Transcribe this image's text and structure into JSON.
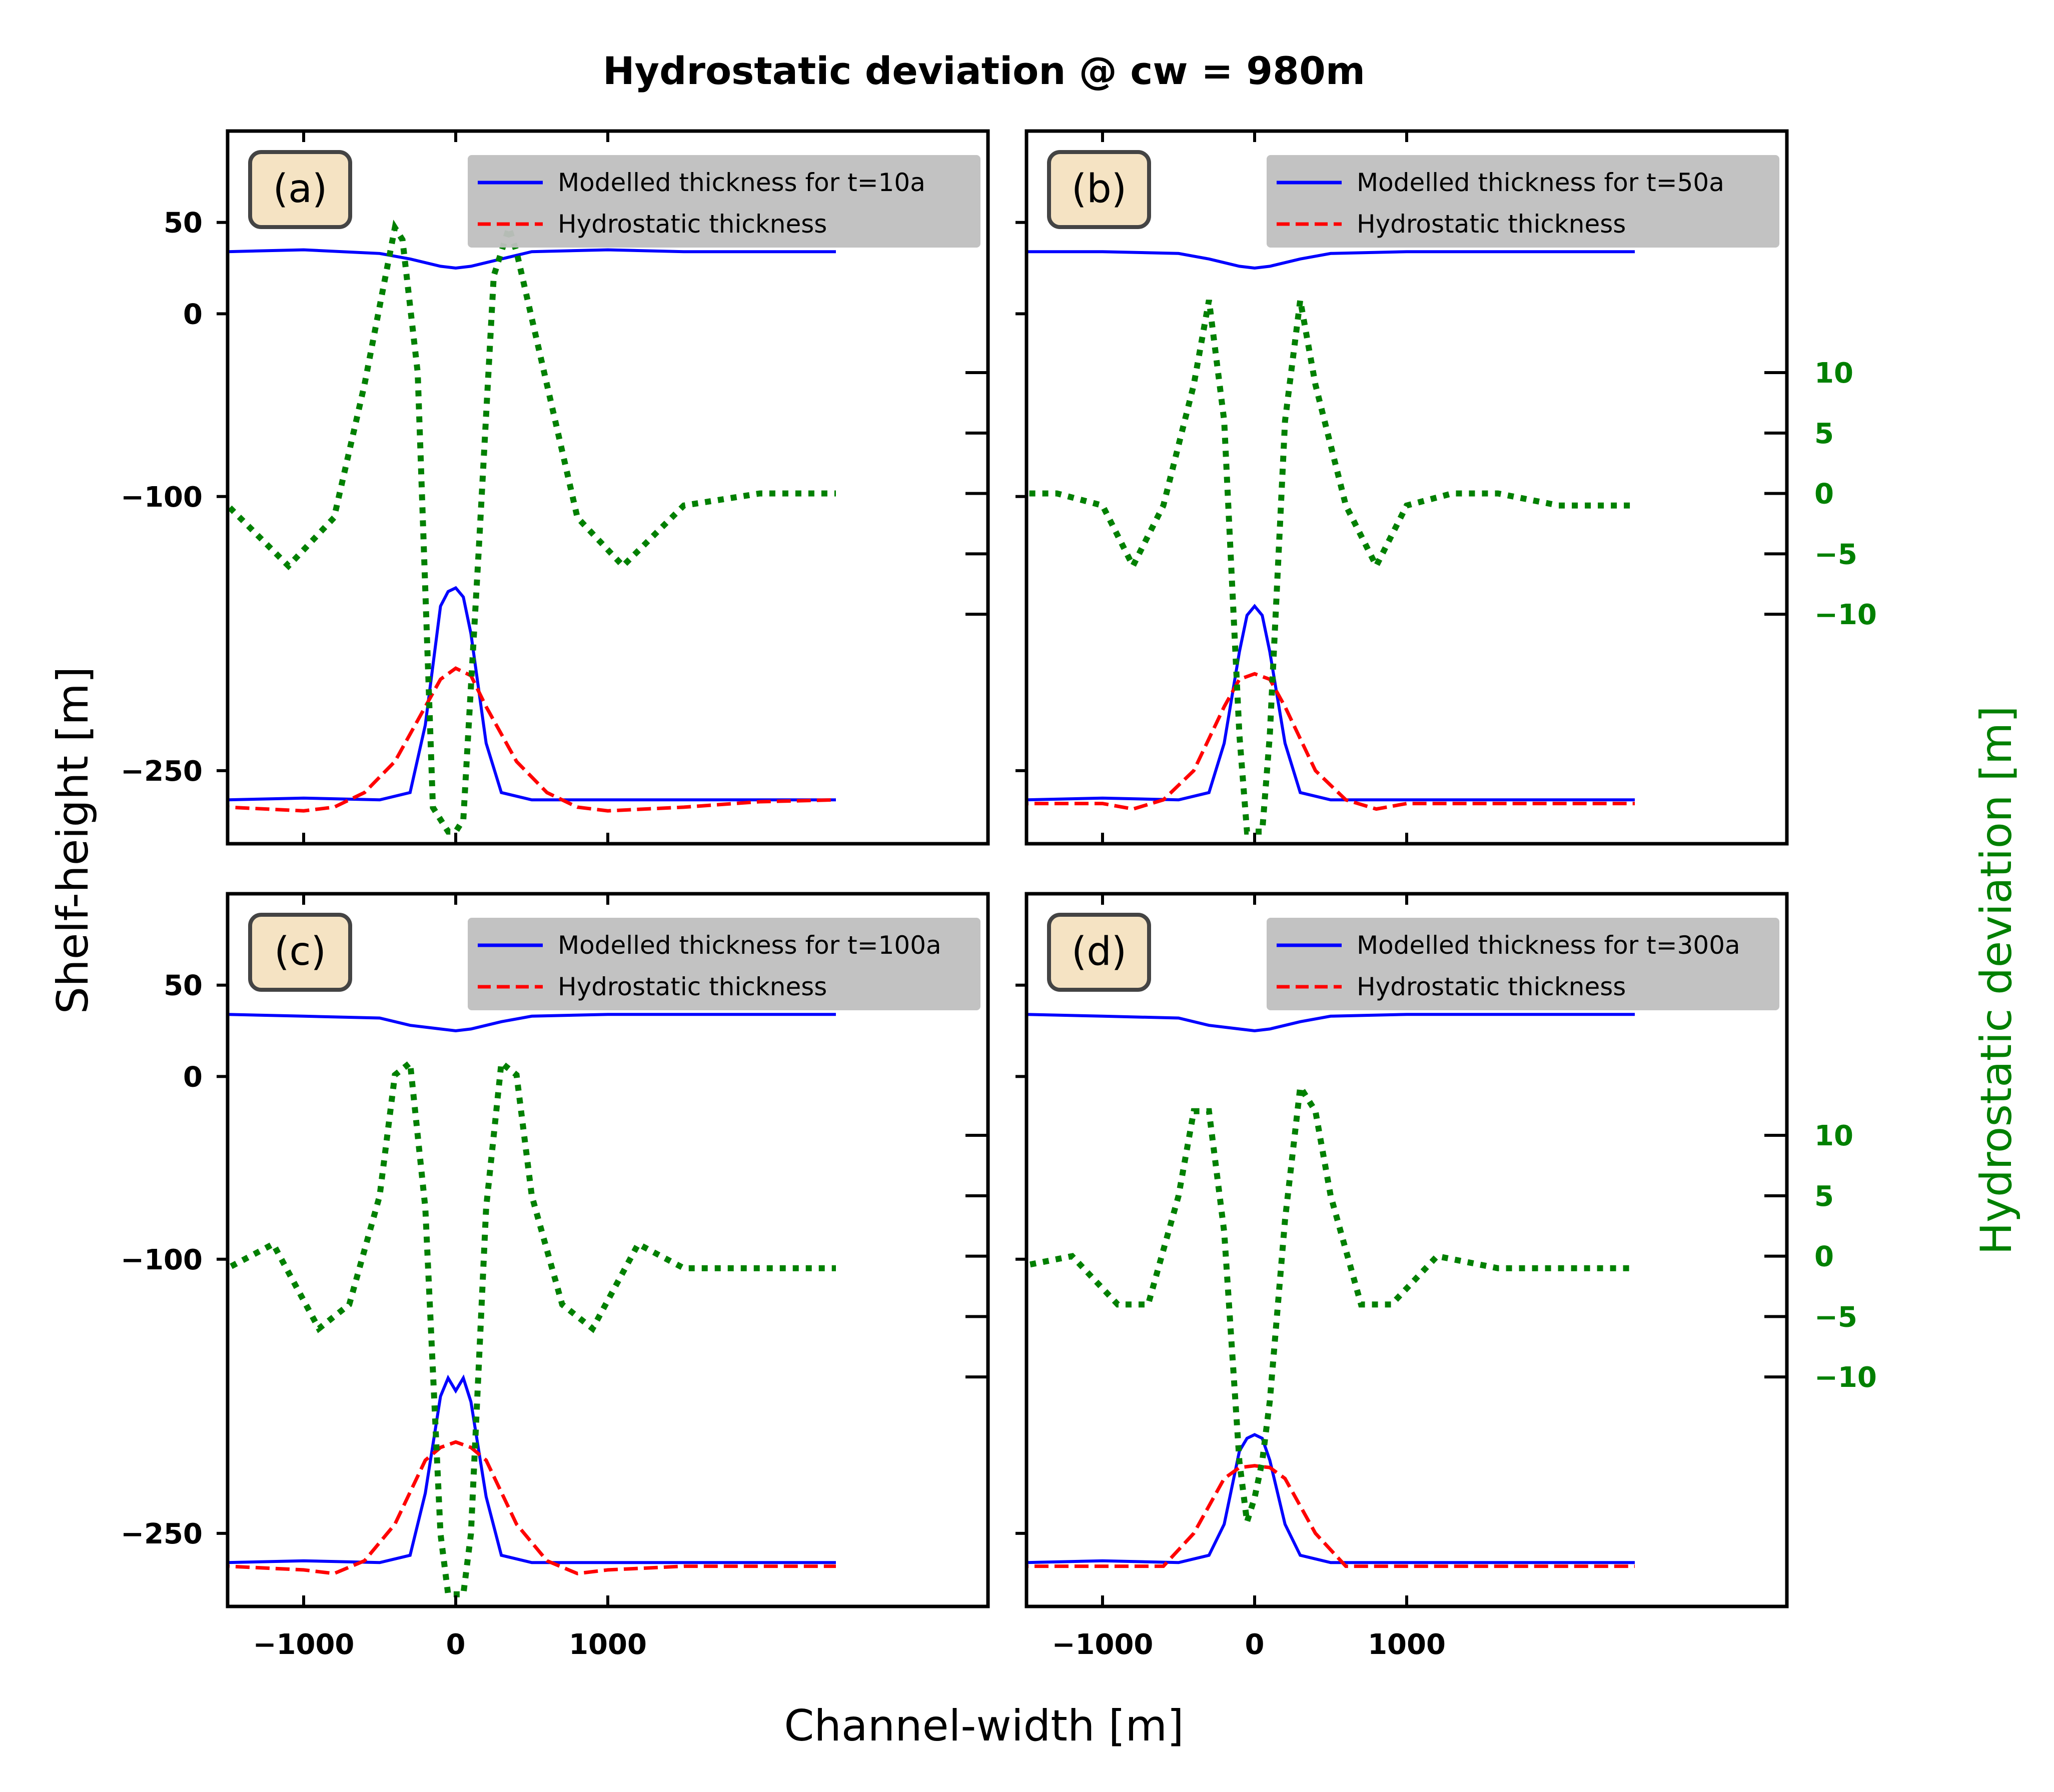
{
  "figure": {
    "title": "Hydrostatic deviation @ cw = 980m",
    "xlabel": "Channel-width [m]",
    "ylabel_left": "Shelf-height [m]",
    "ylabel_right": "Hydrostatic deviation [m]"
  },
  "colors": {
    "modelled": "#0000ff",
    "hydrostatic": "#ff0000",
    "deviation": "#008000",
    "legend_bg": "#bfbfbf",
    "panel_label_bg": "#f5e3c3"
  },
  "axes": {
    "x_ticks": [
      -1000,
      0,
      1000
    ],
    "x_tick_labels": [
      "−1000",
      "0",
      "1000"
    ],
    "xlim": [
      -1500,
      3500
    ],
    "left_ticks": [
      50,
      0,
      -100,
      -250
    ],
    "left_tick_labels": [
      "50",
      "0",
      "−100",
      "−250"
    ],
    "left_ylim": [
      -290,
      100
    ],
    "right_ticks": [
      10,
      5,
      0,
      -5,
      -10
    ],
    "right_tick_labels": [
      "10",
      "5",
      "0",
      "−5",
      "−10"
    ],
    "right_ylim": [
      -29,
      30
    ]
  },
  "chart_data": [
    {
      "type": "line",
      "panel_label": "(a)",
      "legend": [
        "Modelled thickness for t=10a",
        "Hydrostatic thickness"
      ],
      "legend_position": "top-right",
      "series": [
        {
          "name": "Modelled thickness for t=10a",
          "axis": "left",
          "style": "solid",
          "x": [
            -2500,
            -1500,
            -1000,
            -500,
            -300,
            -200,
            -100,
            -50,
            0,
            50,
            100,
            200,
            300,
            500,
            1000,
            1500,
            2500
          ],
          "y": [
            -266,
            -266,
            -265,
            -266,
            -262,
            -225,
            -160,
            -152,
            -150,
            -155,
            -175,
            -235,
            -262,
            -266,
            -266,
            -266,
            -266
          ]
        },
        {
          "name": "Modelled thickness for t=10a",
          "axis": "left",
          "style": "solid",
          "x": [
            -2500,
            -2000,
            -1500,
            -1000,
            -500,
            -300,
            -100,
            0,
            100,
            300,
            500,
            1000,
            1500,
            2000,
            2500
          ],
          "y": [
            34,
            34,
            34,
            35,
            33,
            30,
            26,
            25,
            26,
            30,
            34,
            35,
            34,
            34,
            34
          ]
        },
        {
          "name": "Hydrostatic thickness",
          "axis": "left",
          "style": "dashed",
          "x": [
            -2500,
            -2000,
            -1500,
            -1000,
            -800,
            -600,
            -400,
            -200,
            -100,
            0,
            100,
            200,
            400,
            600,
            800,
            1000,
            1500,
            2000,
            2500
          ],
          "y": [
            -266,
            -267,
            -270,
            -272,
            -270,
            -262,
            -245,
            -215,
            -200,
            -194,
            -198,
            -215,
            -245,
            -262,
            -270,
            -272,
            -270,
            -267,
            -266
          ]
        },
        {
          "name": "",
          "axis": "right",
          "style": "dotted",
          "x": [
            -2500,
            -2000,
            -1500,
            -1100,
            -800,
            -600,
            -400,
            -350,
            -250,
            -150,
            -50,
            0,
            50,
            150,
            250,
            350,
            400,
            600,
            800,
            1100,
            1500,
            2000,
            2500
          ],
          "y": [
            0,
            0,
            -1,
            -6,
            -2,
            9,
            22,
            21,
            10,
            -26,
            -28,
            -28,
            -27,
            -5,
            18,
            22,
            20,
            9,
            -2,
            -6,
            -1,
            0,
            0
          ]
        }
      ]
    },
    {
      "type": "line",
      "panel_label": "(b)",
      "legend": [
        "Modelled thickness for t=50a",
        "Hydrostatic thickness"
      ],
      "legend_position": "top-right",
      "series": [
        {
          "name": "Modelled thickness for t=50a",
          "axis": "left",
          "style": "solid",
          "x": [
            -2500,
            -1500,
            -1000,
            -500,
            -300,
            -200,
            -100,
            -50,
            0,
            50,
            100,
            200,
            300,
            500,
            1000,
            1500,
            2500
          ],
          "y": [
            -266,
            -266,
            -265,
            -266,
            -262,
            -235,
            -185,
            -165,
            -160,
            -165,
            -185,
            -235,
            -262,
            -266,
            -266,
            -266,
            -266
          ]
        },
        {
          "name": "Modelled thickness for t=50a",
          "axis": "left",
          "style": "solid",
          "x": [
            -2500,
            -2000,
            -1500,
            -1000,
            -500,
            -300,
            -100,
            0,
            100,
            300,
            500,
            1000,
            1500,
            2000,
            2500
          ],
          "y": [
            34,
            34,
            34,
            34,
            33,
            30,
            26,
            25,
            26,
            30,
            33,
            34,
            34,
            34,
            34
          ]
        },
        {
          "name": "Hydrostatic thickness",
          "axis": "left",
          "style": "dashed",
          "x": [
            -2500,
            -2000,
            -1500,
            -1000,
            -800,
            -600,
            -400,
            -200,
            -100,
            0,
            100,
            200,
            400,
            600,
            800,
            1000,
            1500,
            2000,
            2500
          ],
          "y": [
            -268,
            -268,
            -268,
            -268,
            -271,
            -266,
            -250,
            -215,
            -200,
            -197,
            -200,
            -215,
            -250,
            -266,
            -271,
            -268,
            -268,
            -268,
            -268
          ]
        },
        {
          "name": "",
          "axis": "right",
          "style": "dotted",
          "x": [
            -2500,
            -2000,
            -1600,
            -1300,
            -1000,
            -800,
            -600,
            -400,
            -300,
            -200,
            -100,
            -50,
            0,
            50,
            100,
            200,
            300,
            400,
            600,
            800,
            1000,
            1300,
            1600,
            2000,
            2500
          ],
          "y": [
            -1,
            -1,
            0,
            0,
            -1,
            -6,
            -1,
            9,
            16,
            6,
            -20,
            -28,
            -28,
            -28,
            -20,
            6,
            16,
            9,
            -1,
            -6,
            -1,
            0,
            0,
            -1,
            -1
          ]
        }
      ]
    },
    {
      "type": "line",
      "panel_label": "(c)",
      "legend": [
        "Modelled thickness for t=100a",
        "Hydrostatic thickness"
      ],
      "legend_position": "top-right",
      "series": [
        {
          "name": "Modelled thickness for t=100a",
          "axis": "left",
          "style": "solid",
          "x": [
            -2500,
            -1500,
            -1000,
            -500,
            -300,
            -200,
            -100,
            -50,
            0,
            50,
            100,
            200,
            300,
            500,
            1000,
            1500,
            2500
          ],
          "y": [
            -266,
            -266,
            -265,
            -266,
            -262,
            -228,
            -175,
            -165,
            -172,
            -165,
            -178,
            -230,
            -262,
            -266,
            -266,
            -266,
            -266
          ]
        },
        {
          "name": "Modelled thickness for t=100a",
          "axis": "left",
          "style": "solid",
          "x": [
            -2500,
            -2000,
            -1500,
            -1000,
            -500,
            -300,
            -100,
            0,
            100,
            300,
            500,
            1000,
            1500,
            2000,
            2500
          ],
          "y": [
            34,
            34,
            34,
            33,
            32,
            28,
            26,
            25,
            26,
            30,
            33,
            34,
            34,
            34,
            34
          ]
        },
        {
          "name": "Hydrostatic thickness",
          "axis": "left",
          "style": "dashed",
          "x": [
            -2500,
            -2000,
            -1500,
            -1000,
            -800,
            -600,
            -400,
            -200,
            -100,
            0,
            100,
            200,
            400,
            600,
            800,
            1000,
            1500,
            2000,
            2500
          ],
          "y": [
            -268,
            -268,
            -268,
            -270,
            -272,
            -265,
            -245,
            -210,
            -203,
            -200,
            -203,
            -210,
            -245,
            -265,
            -272,
            -270,
            -268,
            -268,
            -268
          ]
        },
        {
          "name": "",
          "axis": "right",
          "style": "dotted",
          "x": [
            -2500,
            -2000,
            -1500,
            -1200,
            -900,
            -700,
            -500,
            -400,
            -300,
            -200,
            -100,
            -50,
            0,
            50,
            100,
            200,
            300,
            400,
            500,
            700,
            900,
            1200,
            1500,
            2000,
            2500
          ],
          "y": [
            -1,
            -1,
            -1,
            1,
            -6,
            -4,
            5,
            15,
            16,
            4,
            -23,
            -28,
            -28,
            -28,
            -23,
            4,
            16,
            15,
            5,
            -4,
            -6,
            1,
            -1,
            -1,
            -1
          ]
        }
      ]
    },
    {
      "type": "line",
      "panel_label": "(d)",
      "legend": [
        "Modelled thickness for t=300a",
        "Hydrostatic thickness"
      ],
      "legend_position": "top-right",
      "series": [
        {
          "name": "Modelled thickness for t=300a",
          "axis": "left",
          "style": "solid",
          "x": [
            -2500,
            -1500,
            -1000,
            -500,
            -300,
            -200,
            -100,
            -50,
            0,
            50,
            100,
            200,
            300,
            500,
            1000,
            1500,
            2500
          ],
          "y": [
            -266,
            -266,
            -265,
            -266,
            -262,
            -245,
            -205,
            -198,
            -196,
            -198,
            -210,
            -245,
            -262,
            -266,
            -266,
            -266,
            -266
          ]
        },
        {
          "name": "Modelled thickness for t=300a",
          "axis": "left",
          "style": "solid",
          "x": [
            -2500,
            -2000,
            -1500,
            -1000,
            -500,
            -300,
            -100,
            0,
            100,
            300,
            500,
            1000,
            1500,
            2000,
            2500
          ],
          "y": [
            34,
            34,
            34,
            33,
            32,
            28,
            26,
            25,
            26,
            30,
            33,
            34,
            34,
            34,
            34
          ]
        },
        {
          "name": "Hydrostatic thickness",
          "axis": "left",
          "style": "dashed",
          "x": [
            -2500,
            -2000,
            -1500,
            -1000,
            -800,
            -600,
            -400,
            -200,
            -100,
            0,
            100,
            200,
            400,
            600,
            800,
            1000,
            1500,
            2000,
            2500
          ],
          "y": [
            -268,
            -268,
            -268,
            -268,
            -268,
            -268,
            -250,
            -220,
            -214,
            -213,
            -214,
            -220,
            -250,
            -268,
            -268,
            -268,
            -268,
            -268,
            -268
          ]
        },
        {
          "name": "",
          "axis": "right",
          "style": "dotted",
          "x": [
            -2500,
            -2000,
            -1600,
            -1200,
            -900,
            -700,
            -500,
            -400,
            -300,
            -200,
            -100,
            -50,
            0,
            50,
            100,
            200,
            300,
            400,
            500,
            700,
            900,
            1200,
            1600,
            2000,
            2500
          ],
          "y": [
            -1,
            -1,
            -1,
            0,
            -4,
            -4,
            5,
            12,
            12,
            2,
            -17,
            -22,
            -20,
            -17,
            -12,
            3,
            14,
            12,
            5,
            -4,
            -4,
            0,
            -1,
            -1,
            -1
          ]
        }
      ]
    }
  ]
}
